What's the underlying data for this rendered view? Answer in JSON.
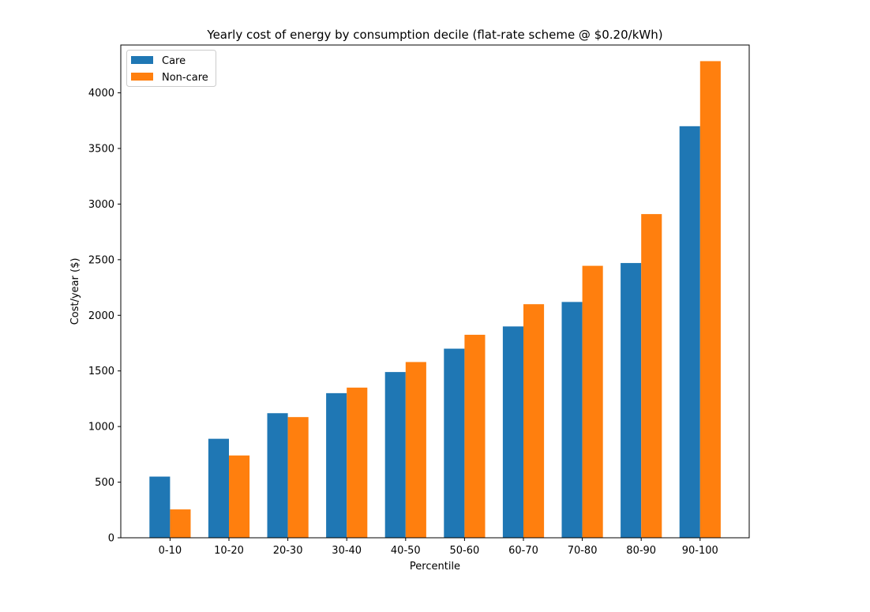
{
  "chart_data": {
    "type": "bar",
    "title": "Yearly cost of energy by consumption decile (flat-rate scheme @ $0.20/kWh)",
    "xlabel": "Percentile",
    "ylabel": "Cost/year ($)",
    "categories": [
      "0-10",
      "10-20",
      "20-30",
      "30-40",
      "40-50",
      "50-60",
      "60-70",
      "70-80",
      "80-90",
      "90-100"
    ],
    "series": [
      {
        "name": "Care",
        "color": "#1f77b4",
        "values": [
          550,
          890,
          1120,
          1300,
          1490,
          1700,
          1900,
          2120,
          2470,
          3700
        ]
      },
      {
        "name": "Non-care",
        "color": "#ff7f0e",
        "values": [
          255,
          740,
          1085,
          1350,
          1580,
          1825,
          2100,
          2445,
          2910,
          4285
        ]
      }
    ],
    "ylim": [
      0,
      4430
    ],
    "yticks": [
      0,
      500,
      1000,
      1500,
      2000,
      2500,
      3000,
      3500,
      4000
    ],
    "legend_position": "top-left",
    "grid": false
  }
}
